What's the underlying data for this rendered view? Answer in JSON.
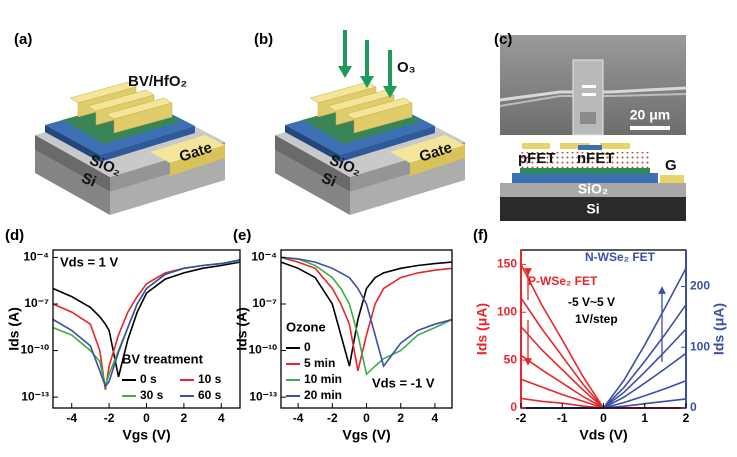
{
  "panel_a": {
    "label": "(a)",
    "layer": "BV/HfO₂",
    "oxide": "SiO₂",
    "substrate": "Si",
    "gate": "Gate"
  },
  "panel_b": {
    "label": "(b)",
    "gas": "O₃",
    "oxide": "SiO₂",
    "substrate": "Si",
    "gate": "Gate"
  },
  "panel_c": {
    "label": "(c)",
    "scale_bar": "20 μm",
    "p_device": "pFET",
    "n_device": "nFET",
    "gate": "G",
    "oxide": "SiO₂",
    "substrate": "Si"
  },
  "chart_data": [
    {
      "type": "line",
      "panel": "(d)",
      "xlabel": "Vgs (V)",
      "ylabel": "Ids (A)",
      "annotation": "Vds = 1 V",
      "xlim": [
        -5,
        5
      ],
      "xticks": [
        -4,
        -2,
        0,
        2,
        4
      ],
      "log_y": true,
      "ylim": [
        2e-14,
        0.0003
      ],
      "yticks": [
        {
          "value": 0.0001,
          "label": "10⁻⁴"
        },
        {
          "value": 1e-07,
          "label": "10⁻⁷"
        },
        {
          "value": 1e-10,
          "label": "10⁻¹⁰"
        },
        {
          "value": 1e-13,
          "label": "10⁻¹³"
        }
      ],
      "legend": "lower right",
      "legend_columns": 2,
      "legend_title": "BV treatment",
      "x": [
        -5,
        -4,
        -3,
        -2.5,
        -2.2,
        -2,
        -1.5,
        -1,
        -0.5,
        0,
        1,
        2,
        3,
        4,
        5
      ],
      "series": [
        {
          "name": "0 s",
          "color": "#000000",
          "values": [
            1e-06,
            3e-07,
            6e-08,
            1.5e-08,
            5e-09,
            2e-09,
            2e-12,
            5e-10,
            3e-08,
            5e-07,
            4e-06,
            1e-05,
            2e-05,
            3e-05,
            5e-05
          ]
        },
        {
          "name": "10 s",
          "color": "#e8262b",
          "values": [
            1e-07,
            3e-08,
            5e-09,
            1e-10,
            3e-13,
            1e-11,
            1e-09,
            3e-08,
            3e-07,
            2e-06,
            1e-05,
            2e-05,
            3e-05,
            4e-05,
            6e-05
          ]
        },
        {
          "name": "30 s",
          "color": "#3cb043",
          "values": [
            3e-09,
            1e-09,
            1e-10,
            2e-11,
            5e-13,
            3e-12,
            1e-10,
            3e-09,
            1e-07,
            1e-06,
            8e-06,
            2e-05,
            3e-05,
            4e-05,
            6e-05
          ]
        },
        {
          "name": "60 s",
          "color": "#3b4fa8",
          "values": [
            1e-08,
            2e-09,
            2e-10,
            5e-12,
            5e-13,
            1e-12,
            8e-11,
            3e-09,
            1e-07,
            1e-06,
            8e-06,
            2e-05,
            3e-05,
            4e-05,
            7e-05
          ]
        }
      ]
    },
    {
      "type": "line",
      "panel": "(e)",
      "xlabel": "Vgs (V)",
      "ylabel": "Ids (A)",
      "annotation": "Vds = -1 V",
      "xlim": [
        -5,
        5
      ],
      "xticks": [
        -4,
        -2,
        0,
        2,
        4
      ],
      "log_y": true,
      "ylim": [
        2e-14,
        0.0003
      ],
      "yticks": [
        {
          "value": 0.0001,
          "label": "10⁻⁴"
        },
        {
          "value": 1e-07,
          "label": "10⁻⁷"
        },
        {
          "value": 1e-10,
          "label": "10⁻¹⁰"
        },
        {
          "value": 1e-13,
          "label": "10⁻¹³"
        }
      ],
      "legend": "lower left",
      "legend_columns": 1,
      "legend_title": "Ozone",
      "x": [
        -5,
        -4,
        -3,
        -2,
        -1.5,
        -1,
        -0.5,
        0,
        0.5,
        1,
        2,
        3,
        4,
        5
      ],
      "series": [
        {
          "name": "0",
          "color": "#000000",
          "values": [
            5e-05,
            2e-05,
            5e-06,
            1e-07,
            1e-09,
            1e-11,
            1e-08,
            1e-06,
            5e-06,
            1e-05,
            2e-05,
            3e-05,
            4e-05,
            5e-05
          ]
        },
        {
          "name": "5 min",
          "color": "#e8262b",
          "values": [
            0.0001,
            5e-05,
            2e-05,
            1e-06,
            1e-07,
            5e-09,
            5e-12,
            1e-09,
            1e-07,
            1e-06,
            5e-06,
            1e-05,
            1.5e-05,
            2e-05
          ]
        },
        {
          "name": "10 min",
          "color": "#3cb043",
          "values": [
            0.0001,
            8e-05,
            3e-05,
            5e-06,
            1e-06,
            1e-07,
            1e-09,
            3e-12,
            1e-11,
            3e-11,
            1e-10,
            1e-09,
            3e-09,
            1e-08
          ]
        },
        {
          "name": "20 min",
          "color": "#3b4fa8",
          "values": [
            0.0001,
            8e-05,
            5e-05,
            2e-05,
            1e-05,
            5e-06,
            1e-06,
            1e-07,
            1e-09,
            1e-11,
            3e-10,
            2e-09,
            5e-09,
            1e-08
          ]
        }
      ]
    },
    {
      "type": "line",
      "panel": "(f)",
      "xlabel": "Vds (V)",
      "ylabel": "Ids (μA)",
      "y2label": "Ids (μA)",
      "ycolor": "#e8262b",
      "y2color": "#3b4fa8",
      "annotations": [
        "P-WSe₂ FET",
        "N-WSe₂ FET",
        "-5 V~5 V",
        "1V/step"
      ],
      "xlim": [
        -2,
        2
      ],
      "xticks": [
        -2,
        -1,
        0,
        1,
        2
      ],
      "ylim": [
        0,
        165
      ],
      "yticks": [
        0,
        50,
        100,
        150
      ],
      "y2lim": [
        0,
        260
      ],
      "y2ticks": [
        0,
        100,
        200
      ],
      "x": [
        -2,
        -1.5,
        -1,
        -0.5,
        0,
        0.5,
        1,
        1.5,
        2
      ],
      "series": [
        {
          "color": "#e8262b",
          "values": [
            150,
            108,
            71,
            33,
            0,
            0,
            0,
            0,
            0
          ]
        },
        {
          "color": "#e8262b",
          "values": [
            115,
            83,
            54,
            25,
            0,
            0,
            0,
            0,
            0
          ]
        },
        {
          "color": "#e8262b",
          "values": [
            85,
            61,
            40,
            19,
            0,
            0,
            0,
            0,
            0
          ]
        },
        {
          "color": "#e8262b",
          "values": [
            55,
            40,
            26,
            12,
            0,
            0,
            0,
            0,
            0
          ]
        },
        {
          "color": "#e8262b",
          "values": [
            30,
            22,
            14,
            7,
            0,
            0,
            0,
            0,
            0
          ]
        },
        {
          "color": "#e8262b",
          "values": [
            10,
            7,
            5,
            2,
            0,
            0,
            0,
            0,
            0
          ]
        },
        {
          "color": "#3b4fa8",
          "axis": "y2",
          "values": [
            0,
            0,
            0,
            0,
            0,
            46,
            104,
            166,
            230
          ]
        },
        {
          "color": "#3b4fa8",
          "axis": "y2",
          "values": [
            0,
            0,
            0,
            0,
            0,
            34,
            77,
            122,
            170
          ]
        },
        {
          "color": "#3b4fa8",
          "axis": "y2",
          "values": [
            0,
            0,
            0,
            0,
            0,
            26,
            59,
            94,
            130
          ]
        },
        {
          "color": "#3b4fa8",
          "axis": "y2",
          "values": [
            0,
            0,
            0,
            0,
            0,
            18,
            41,
            65,
            90
          ]
        },
        {
          "color": "#3b4fa8",
          "axis": "y2",
          "values": [
            0,
            0,
            0,
            0,
            0,
            9,
            20,
            32,
            45
          ]
        },
        {
          "color": "#3b4fa8",
          "axis": "y2",
          "values": [
            0,
            0,
            0,
            0,
            0,
            3,
            7,
            11,
            15
          ]
        }
      ]
    }
  ]
}
